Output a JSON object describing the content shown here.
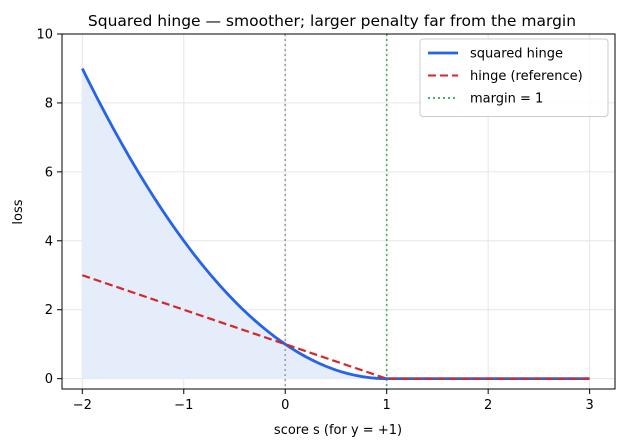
{
  "chart_data": {
    "type": "line",
    "title": "Squared hinge — smoother; larger penalty far from the margin",
    "xlabel": "score  s  (for y = +1)",
    "ylabel": "loss",
    "xlim": [
      -2.2,
      3.25
    ],
    "ylim": [
      -0.3,
      10
    ],
    "xticks": [
      -2,
      -1,
      0,
      1,
      2,
      3
    ],
    "xtick_labels": [
      "−2",
      "−1",
      "0",
      "1",
      "2",
      "3"
    ],
    "yticks": [
      0,
      2,
      4,
      6,
      8,
      10
    ],
    "ytick_labels": [
      "0",
      "2",
      "4",
      "6",
      "8",
      "10"
    ],
    "grid": true,
    "legend_position": "top-right",
    "x": [
      -2,
      -1.5,
      -1,
      -0.5,
      0,
      0.5,
      1,
      1.5,
      2,
      2.5,
      3
    ],
    "series": [
      {
        "name": "squared hinge",
        "style": "solid",
        "color": "#2563eb",
        "fill": "#e5edfb",
        "values": [
          9,
          6.25,
          4,
          2.25,
          1,
          0.25,
          0,
          0,
          0,
          0,
          0
        ]
      },
      {
        "name": "hinge (reference)",
        "style": "dashed",
        "color": "#d62728",
        "values": [
          3,
          2.5,
          2,
          1.5,
          1,
          0.5,
          0,
          0,
          0,
          0,
          0
        ]
      }
    ],
    "vlines": [
      {
        "x": 0,
        "style": "dotted",
        "color": "#a0a0a0",
        "label": ""
      },
      {
        "x": 1,
        "style": "dotted",
        "color": "#4caf6e",
        "label": "margin = 1"
      }
    ]
  }
}
